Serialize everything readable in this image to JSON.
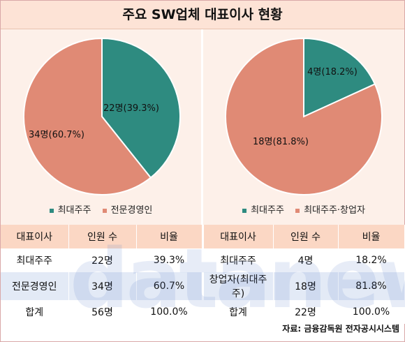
{
  "title": "주요 SW업체 대표이사 현황",
  "colors": {
    "teal": "#2e8b80",
    "salmon": "#e08a75"
  },
  "chart_data": [
    {
      "type": "pie",
      "slices": [
        {
          "name": "최대주주",
          "value": 22,
          "label": "22명(39.3%)",
          "color": "#2e8b80"
        },
        {
          "name": "전문경영인",
          "value": 34,
          "label": "34명(60.7%)",
          "color": "#e08a75"
        }
      ],
      "legend": [
        "최대주주",
        "전문경영인"
      ]
    },
    {
      "type": "pie",
      "slices": [
        {
          "name": "최대주주",
          "value": 4,
          "label": "4명(18.2%)",
          "color": "#2e8b80"
        },
        {
          "name": "최대주주·창업자",
          "value": 18,
          "label": "18명(81.8%)",
          "color": "#e08a75"
        }
      ],
      "legend": [
        "최대주주",
        "최대주주·창업자"
      ]
    }
  ],
  "table": {
    "headers": [
      "대표이사",
      "인원 수",
      "비율",
      "대표이사",
      "인원 수",
      "비율"
    ],
    "rows": [
      [
        "최대주주",
        "22명",
        "39.3%",
        "최대주주",
        "4명",
        "18.2%"
      ],
      [
        "전문경영인",
        "34명",
        "60.7%",
        "창업자(최대주주)",
        "18명",
        "81.8%"
      ],
      [
        "합계",
        "56명",
        "100.0%",
        "합계",
        "22명",
        "100.0%"
      ]
    ]
  },
  "watermark": "datanews",
  "source": "자료: 금융감독원 전자공시시스템"
}
